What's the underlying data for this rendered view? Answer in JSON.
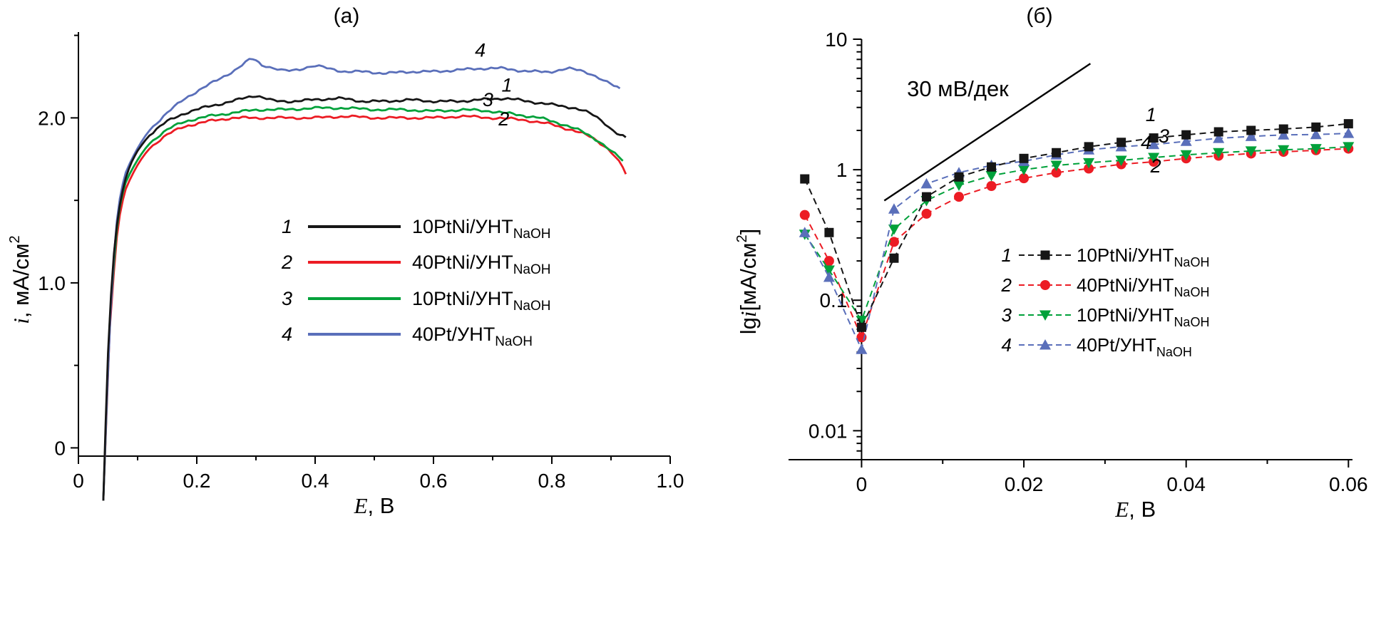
{
  "chart_data": [
    {
      "type": "line",
      "panel_label": "(а)",
      "xlabel_parts": [
        {
          "text": "E",
          "style": "italic"
        },
        {
          "text": ", В",
          "style": "normal"
        }
      ],
      "ylabel_parts": [
        {
          "text": "i",
          "style": "italic"
        },
        {
          "text": ", мА/см",
          "style": "normal"
        },
        {
          "text": "2",
          "style": "sup"
        }
      ],
      "xlim": [
        0,
        1.0
      ],
      "ylim": [
        -0.05,
        2.52
      ],
      "grid": false,
      "legend_position": "center",
      "x_ticks": {
        "major": [
          0,
          0.2,
          0.4,
          0.6,
          0.8,
          1.0
        ],
        "labels": [
          "0",
          "0.2",
          "0.4",
          "0.6",
          "0.8",
          "1.0"
        ],
        "minor": [
          0.1,
          0.3,
          0.5,
          0.7,
          0.9
        ]
      },
      "y_ticks": {
        "major": [
          0,
          1.0,
          2.0
        ],
        "labels": [
          "0",
          "1.0",
          "2.0"
        ],
        "minor": [
          0.5,
          1.5,
          2.5
        ]
      },
      "series": [
        {
          "id": "1",
          "name": "10PtNi/УНТ",
          "sub": "NaOH",
          "color": "#161616",
          "points": [
            [
              0.042,
              -0.32
            ],
            [
              0.046,
              0.2
            ],
            [
              0.05,
              0.6
            ],
            [
              0.055,
              1.0
            ],
            [
              0.06,
              1.25
            ],
            [
              0.07,
              1.5
            ],
            [
              0.08,
              1.65
            ],
            [
              0.09,
              1.74
            ],
            [
              0.1,
              1.8
            ],
            [
              0.12,
              1.9
            ],
            [
              0.15,
              1.98
            ],
            [
              0.18,
              2.03
            ],
            [
              0.22,
              2.07
            ],
            [
              0.26,
              2.1
            ],
            [
              0.3,
              2.14
            ],
            [
              0.33,
              2.1
            ],
            [
              0.36,
              2.1
            ],
            [
              0.4,
              2.11
            ],
            [
              0.44,
              2.12
            ],
            [
              0.48,
              2.1
            ],
            [
              0.52,
              2.1
            ],
            [
              0.56,
              2.11
            ],
            [
              0.6,
              2.1
            ],
            [
              0.64,
              2.1
            ],
            [
              0.68,
              2.11
            ],
            [
              0.72,
              2.12
            ],
            [
              0.76,
              2.1
            ],
            [
              0.8,
              2.08
            ],
            [
              0.84,
              2.06
            ],
            [
              0.87,
              2.02
            ],
            [
              0.89,
              1.97
            ],
            [
              0.91,
              1.9
            ],
            [
              0.925,
              1.88
            ]
          ]
        },
        {
          "id": "2",
          "name": "40PtNi/УНТ",
          "sub": "NaOH",
          "color": "#ec1c24",
          "points": [
            [
              0.042,
              -0.32
            ],
            [
              0.048,
              0.3
            ],
            [
              0.053,
              0.8
            ],
            [
              0.06,
              1.2
            ],
            [
              0.07,
              1.45
            ],
            [
              0.08,
              1.58
            ],
            [
              0.1,
              1.72
            ],
            [
              0.12,
              1.82
            ],
            [
              0.15,
              1.9
            ],
            [
              0.18,
              1.95
            ],
            [
              0.22,
              1.98
            ],
            [
              0.26,
              2.0
            ],
            [
              0.3,
              2.0
            ],
            [
              0.35,
              2.0
            ],
            [
              0.4,
              2.0
            ],
            [
              0.45,
              2.01
            ],
            [
              0.5,
              2.0
            ],
            [
              0.55,
              2.0
            ],
            [
              0.6,
              2.0
            ],
            [
              0.65,
              2.01
            ],
            [
              0.7,
              2.0
            ],
            [
              0.75,
              1.99
            ],
            [
              0.8,
              1.96
            ],
            [
              0.84,
              1.92
            ],
            [
              0.87,
              1.88
            ],
            [
              0.9,
              1.8
            ],
            [
              0.92,
              1.7
            ],
            [
              0.925,
              1.66
            ]
          ]
        },
        {
          "id": "3",
          "name": "10PtNi/УНТ",
          "sub": "NaOH",
          "color": "#00a13a",
          "points": [
            [
              0.042,
              -0.32
            ],
            [
              0.048,
              0.35
            ],
            [
              0.053,
              0.85
            ],
            [
              0.06,
              1.25
            ],
            [
              0.07,
              1.5
            ],
            [
              0.08,
              1.62
            ],
            [
              0.1,
              1.75
            ],
            [
              0.12,
              1.85
            ],
            [
              0.15,
              1.93
            ],
            [
              0.18,
              1.98
            ],
            [
              0.22,
              2.01
            ],
            [
              0.26,
              2.03
            ],
            [
              0.3,
              2.05
            ],
            [
              0.35,
              2.05
            ],
            [
              0.4,
              2.06
            ],
            [
              0.45,
              2.06
            ],
            [
              0.5,
              2.05
            ],
            [
              0.55,
              2.05
            ],
            [
              0.6,
              2.04
            ],
            [
              0.65,
              2.05
            ],
            [
              0.7,
              2.04
            ],
            [
              0.74,
              2.02
            ],
            [
              0.78,
              2.0
            ],
            [
              0.82,
              1.96
            ],
            [
              0.85,
              1.92
            ],
            [
              0.88,
              1.86
            ],
            [
              0.9,
              1.8
            ],
            [
              0.92,
              1.74
            ]
          ]
        },
        {
          "id": "4",
          "name": "40Pt/УНТ",
          "sub": "NaOH",
          "color": "#5a6fba",
          "points": [
            [
              0.042,
              -0.32
            ],
            [
              0.048,
              0.3
            ],
            [
              0.054,
              0.9
            ],
            [
              0.06,
              1.3
            ],
            [
              0.07,
              1.55
            ],
            [
              0.08,
              1.68
            ],
            [
              0.1,
              1.82
            ],
            [
              0.12,
              1.93
            ],
            [
              0.15,
              2.03
            ],
            [
              0.18,
              2.12
            ],
            [
              0.21,
              2.18
            ],
            [
              0.24,
              2.24
            ],
            [
              0.27,
              2.3
            ],
            [
              0.295,
              2.37
            ],
            [
              0.31,
              2.32
            ],
            [
              0.33,
              2.3
            ],
            [
              0.35,
              2.28
            ],
            [
              0.38,
              2.3
            ],
            [
              0.4,
              2.32
            ],
            [
              0.42,
              2.3
            ],
            [
              0.45,
              2.28
            ],
            [
              0.48,
              2.28
            ],
            [
              0.52,
              2.27
            ],
            [
              0.56,
              2.28
            ],
            [
              0.6,
              2.28
            ],
            [
              0.64,
              2.29
            ],
            [
              0.68,
              2.3
            ],
            [
              0.72,
              2.3
            ],
            [
              0.76,
              2.28
            ],
            [
              0.8,
              2.28
            ],
            [
              0.83,
              2.3
            ],
            [
              0.86,
              2.28
            ],
            [
              0.88,
              2.24
            ],
            [
              0.9,
              2.2
            ],
            [
              0.915,
              2.18
            ]
          ]
        }
      ],
      "curve_labels": [
        {
          "text": "4",
          "x": 0.67,
          "y": 2.37
        },
        {
          "text": "1",
          "x": 0.715,
          "y": 2.16
        },
        {
          "text": "3",
          "x": 0.683,
          "y": 2.07
        },
        {
          "text": "2",
          "x": 0.71,
          "y": 1.955
        }
      ]
    },
    {
      "type": "scatter",
      "yscale": "log",
      "panel_label": "(б)",
      "xlabel_parts": [
        {
          "text": "E",
          "style": "italic"
        },
        {
          "text": ", В",
          "style": "normal"
        }
      ],
      "ylabel_parts": [
        {
          "text": "lg",
          "style": "normal"
        },
        {
          "text": "i",
          "style": "italic"
        },
        {
          "text": "[мА/см",
          "style": "normal"
        },
        {
          "text": "2",
          "style": "sup"
        },
        {
          "text": "]",
          "style": "unsup"
        }
      ],
      "xlim": [
        -0.009,
        0.0605
      ],
      "ylim": [
        0.006,
        10
      ],
      "grid": false,
      "legend_position": "right-center",
      "x_ticks": {
        "major": [
          0,
          0.02,
          0.04,
          0.06
        ],
        "labels": [
          "0",
          "0.02",
          "0.04",
          "0.06"
        ],
        "minor": [
          0.01,
          0.03,
          0.05
        ]
      },
      "y_ticks": {
        "major": [
          0.01,
          0.1,
          1,
          10
        ],
        "labels": [
          "0.01",
          "0.1",
          "1",
          "10"
        ]
      },
      "annotation": {
        "text": "30 мВ/дек",
        "x": 0.0056,
        "y": 3.66,
        "line": {
          "x1": 0.0028,
          "y1": 0.58,
          "x2": 0.0282,
          "y2": 6.5
        }
      },
      "x_values": [
        -0.007,
        -0.004,
        0,
        0.004,
        0.008,
        0.012,
        0.016,
        0.02,
        0.024,
        0.028,
        0.032,
        0.036,
        0.04,
        0.044,
        0.048,
        0.052,
        0.056,
        0.06
      ],
      "series": [
        {
          "id": "1",
          "name": "10PtNi/УНТ",
          "sub": "NaOH",
          "color": "#161616",
          "marker": "square",
          "values": [
            0.85,
            0.33,
            0.062,
            0.21,
            0.62,
            0.88,
            1.05,
            1.22,
            1.35,
            1.5,
            1.62,
            1.75,
            1.85,
            1.95,
            2.0,
            2.05,
            2.12,
            2.25
          ]
        },
        {
          "id": "2",
          "name": "40PtNi/УНТ",
          "sub": "NaOH",
          "color": "#ec1c24",
          "marker": "circle",
          "values": [
            0.45,
            0.2,
            0.052,
            0.28,
            0.46,
            0.62,
            0.75,
            0.86,
            0.95,
            1.02,
            1.1,
            1.15,
            1.22,
            1.28,
            1.33,
            1.37,
            1.41,
            1.45
          ]
        },
        {
          "id": "3",
          "name": "10PtNi/УНТ",
          "sub": "NaOH",
          "color": "#00a13a",
          "marker": "triangle-down",
          "values": [
            0.32,
            0.17,
            0.07,
            0.35,
            0.58,
            0.76,
            0.9,
            1.0,
            1.08,
            1.13,
            1.18,
            1.24,
            1.3,
            1.35,
            1.39,
            1.42,
            1.45,
            1.5
          ]
        },
        {
          "id": "4",
          "name": "40Pt/УНТ",
          "sub": "NaOH",
          "color": "#5a6fba",
          "marker": "triangle-up",
          "values": [
            0.33,
            0.15,
            0.042,
            0.5,
            0.78,
            0.95,
            1.08,
            1.16,
            1.3,
            1.42,
            1.5,
            1.56,
            1.65,
            1.74,
            1.8,
            1.85,
            1.86,
            1.9
          ]
        }
      ],
      "curve_labels": [
        {
          "text": "1",
          "x": 0.035,
          "y": 2.35
        },
        {
          "text": "3",
          "x": 0.0366,
          "y": 1.62
        },
        {
          "text": "4",
          "x": 0.0344,
          "y": 1.44
        },
        {
          "text": "2",
          "x": 0.0356,
          "y": 0.95
        }
      ]
    }
  ]
}
